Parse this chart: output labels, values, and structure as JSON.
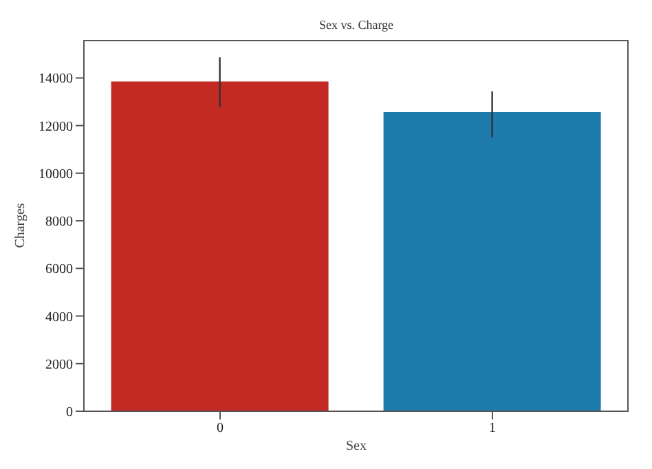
{
  "chart_data": {
    "type": "bar",
    "title": "Sex vs. Charge",
    "xlabel": "Sex",
    "ylabel": "Charges",
    "categories": [
      "0",
      "1"
    ],
    "values": [
      13850,
      12570
    ],
    "colors": [
      "#c42a24",
      "#1f7bab"
    ],
    "errors": [
      [
        12770,
        14870
      ],
      [
        11510,
        13440
      ]
    ],
    "ylim": [
      0,
      15600
    ],
    "yticks": [
      0,
      2000,
      4000,
      6000,
      8000,
      10000,
      12000,
      14000
    ],
    "grid": false
  }
}
